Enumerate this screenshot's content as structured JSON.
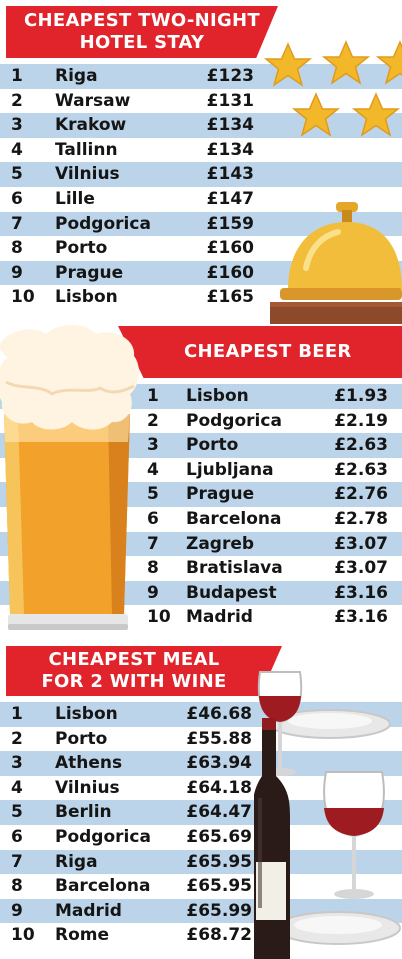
{
  "sections": [
    {
      "title_line1": "CHEAPEST TWO-NIGHT",
      "title_line2": "HOTEL STAY",
      "rows": [
        {
          "rank": "1",
          "city": "Riga",
          "price": "£123"
        },
        {
          "rank": "2",
          "city": "Warsaw",
          "price": "£131"
        },
        {
          "rank": "3",
          "city": "Krakow",
          "price": "£134"
        },
        {
          "rank": "4",
          "city": "Tallinn",
          "price": "£134"
        },
        {
          "rank": "5",
          "city": "Vilnius",
          "price": "£143"
        },
        {
          "rank": "6",
          "city": "Lille",
          "price": "£147"
        },
        {
          "rank": "7",
          "city": "Podgorica",
          "price": "£159"
        },
        {
          "rank": "8",
          "city": "Porto",
          "price": "£160"
        },
        {
          "rank": "9",
          "city": "Prague",
          "price": "£160"
        },
        {
          "rank": "10",
          "city": "Lisbon",
          "price": "£165"
        }
      ]
    },
    {
      "title_line1": "CHEAPEST BEER",
      "rows": [
        {
          "rank": "1",
          "city": "Lisbon",
          "price": "£1.93"
        },
        {
          "rank": "2",
          "city": "Podgorica",
          "price": "£2.19"
        },
        {
          "rank": "3",
          "city": "Porto",
          "price": "£2.63"
        },
        {
          "rank": "4",
          "city": "Ljubljana",
          "price": "£2.63"
        },
        {
          "rank": "5",
          "city": "Prague",
          "price": "£2.76"
        },
        {
          "rank": "6",
          "city": "Barcelona",
          "price": "£2.78"
        },
        {
          "rank": "7",
          "city": "Zagreb",
          "price": "£3.07"
        },
        {
          "rank": "8",
          "city": "Bratislava",
          "price": "£3.07"
        },
        {
          "rank": "9",
          "city": "Budapest",
          "price": "£3.16"
        },
        {
          "rank": "10",
          "city": "Madrid",
          "price": "£3.16"
        }
      ]
    },
    {
      "title_line1": "CHEAPEST MEAL",
      "title_line2": "FOR 2 WITH WINE",
      "rows": [
        {
          "rank": "1",
          "city": "Lisbon",
          "price": "£46.68"
        },
        {
          "rank": "2",
          "city": "Porto",
          "price": "£55.88"
        },
        {
          "rank": "3",
          "city": "Athens",
          "price": "£63.94"
        },
        {
          "rank": "4",
          "city": "Vilnius",
          "price": "£64.18"
        },
        {
          "rank": "5",
          "city": "Berlin",
          "price": "£64.47"
        },
        {
          "rank": "6",
          "city": "Podgorica",
          "price": "£65.69"
        },
        {
          "rank": "7",
          "city": "Riga",
          "price": "£65.95"
        },
        {
          "rank": "8",
          "city": "Barcelona",
          "price": "£65.95"
        },
        {
          "rank": "9",
          "city": "Madrid",
          "price": "£65.99"
        },
        {
          "rank": "10",
          "city": "Rome",
          "price": "£68.72"
        }
      ]
    }
  ],
  "icons": {
    "hotel": [
      "star-icon",
      "service-bell-icon"
    ],
    "beer": "beer-glass-icon",
    "meal": [
      "wine-glass-icon",
      "wine-bottle-icon",
      "plate-icon"
    ]
  },
  "colors": {
    "banner_red": "#e1232b",
    "stripe_blue": "#bcd4e9",
    "star_gold": "#f3b72a",
    "beer_amber": "#f2a12a",
    "wine_red": "#9e1b22"
  }
}
